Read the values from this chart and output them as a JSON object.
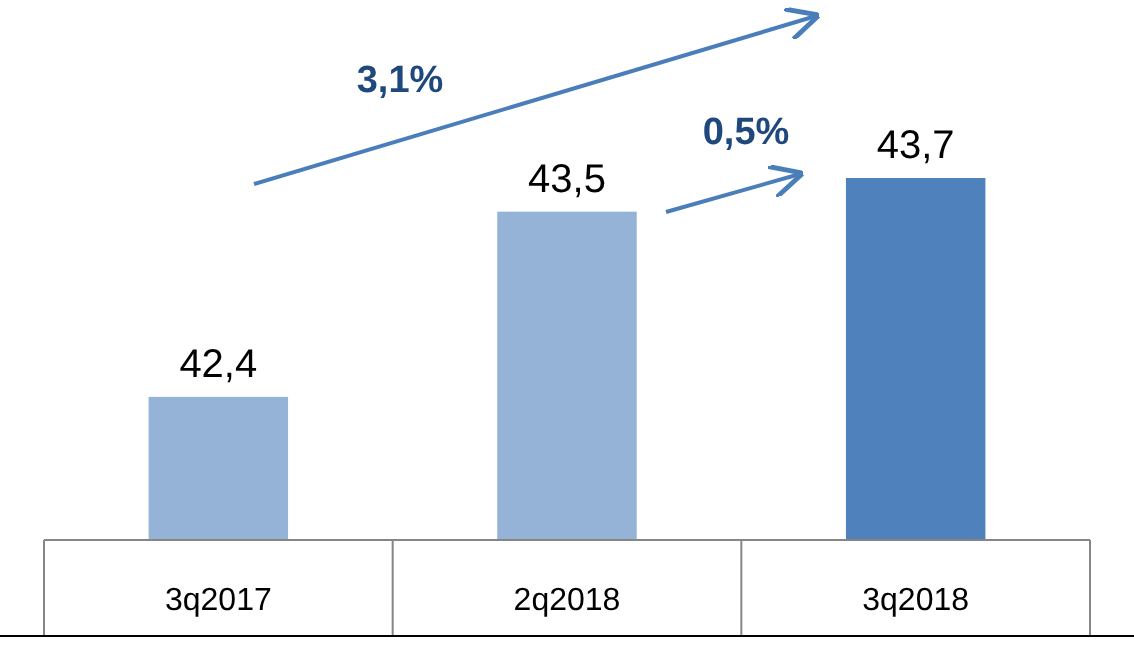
{
  "chart_data": {
    "type": "bar",
    "categories": [
      "3q2017",
      "2q2018",
      "3q2018"
    ],
    "values": [
      42.4,
      43.5,
      43.7
    ],
    "colors": [
      "#95b3d7",
      "#95b3d7",
      "#4f81bd"
    ],
    "ylim": [
      41.55,
      43.7
    ],
    "value_labels": [
      "42,4",
      "43,5",
      "43,7"
    ],
    "tick_labels": "x",
    "annotations": [
      "3,1%",
      "0,5%"
    ]
  }
}
